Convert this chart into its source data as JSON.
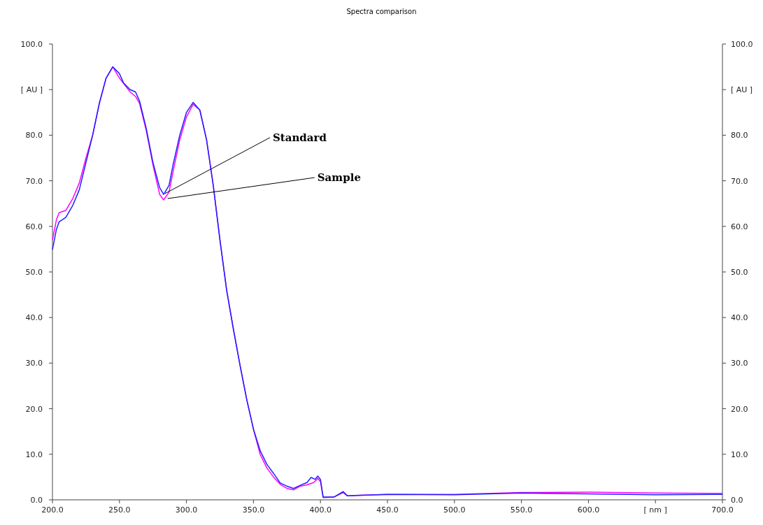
{
  "chart_data": {
    "type": "line",
    "title": "Spectra comparison",
    "xlim": [
      200,
      700
    ],
    "xticks": [
      {
        "value": 200,
        "label": "200.0"
      },
      {
        "value": 250,
        "label": "250.0"
      },
      {
        "value": 300,
        "label": "300.0"
      },
      {
        "value": 350,
        "label": "350.0"
      },
      {
        "value": 400,
        "label": "400.0"
      },
      {
        "value": 450,
        "label": "450.0"
      },
      {
        "value": 500,
        "label": "500.0"
      },
      {
        "value": 550,
        "label": "550.0"
      },
      {
        "value": 600,
        "label": "600.0"
      },
      {
        "value": 650,
        "label": "[ nm ]"
      },
      {
        "value": 700,
        "label": "700.0"
      }
    ],
    "ylim": [
      0,
      100
    ],
    "yticks": [
      {
        "value": 0,
        "label": "0.0"
      },
      {
        "value": 10,
        "label": "10.0"
      },
      {
        "value": 20,
        "label": "20.0"
      },
      {
        "value": 30,
        "label": "30.0"
      },
      {
        "value": 40,
        "label": "40.0"
      },
      {
        "value": 50,
        "label": "50.0"
      },
      {
        "value": 60,
        "label": "60.0"
      },
      {
        "value": 70,
        "label": "70.0"
      },
      {
        "value": 80,
        "label": "80.0"
      },
      {
        "value": 90,
        "label": "[ AU ]"
      },
      {
        "value": 100,
        "label": "100.0"
      }
    ],
    "y2lim": [
      0,
      100
    ],
    "y2ticks": [
      {
        "value": 0,
        "label": "0.0"
      },
      {
        "value": 10,
        "label": "10.0"
      },
      {
        "value": 20,
        "label": "20.0"
      },
      {
        "value": 30,
        "label": "30.0"
      },
      {
        "value": 40,
        "label": "40.0"
      },
      {
        "value": 50,
        "label": "50.0"
      },
      {
        "value": 60,
        "label": "60.0"
      },
      {
        "value": 70,
        "label": "70.0"
      },
      {
        "value": 80,
        "label": "80.0"
      },
      {
        "value": 90,
        "label": "[ AU ]"
      },
      {
        "value": 100,
        "label": "100.0"
      }
    ],
    "grid": false,
    "marker": "none",
    "line_style": "solid",
    "series": [
      {
        "color": "#ff00ff",
        "x": [
          200,
          203,
          205,
          210,
          215,
          220,
          225,
          230,
          235,
          240,
          245,
          250,
          258,
          262,
          265,
          270,
          275,
          280,
          283,
          287,
          290,
          295,
          300,
          305,
          310,
          315,
          320,
          325,
          330,
          335,
          340,
          345,
          350,
          355,
          360,
          365,
          370,
          375,
          380,
          385,
          390,
          395,
          398,
          400,
          402,
          410,
          417,
          420,
          450,
          500,
          550,
          600,
          650,
          700
        ],
        "values": [
          57,
          61.5,
          63,
          63.5,
          66,
          69.5,
          75,
          80,
          87,
          92.5,
          95,
          92.5,
          89.5,
          88.5,
          87,
          81,
          73.5,
          67,
          65.8,
          67.5,
          72,
          79,
          84,
          86.8,
          85.5,
          79,
          69,
          57,
          46,
          37.5,
          29.5,
          22,
          15.5,
          10,
          7,
          5,
          3.4,
          2.5,
          2.2,
          3,
          3.3,
          3.8,
          4.7,
          4,
          0.5,
          0.6,
          1.6,
          0.9,
          1.2,
          1.2,
          1.6,
          1.7,
          1.5,
          1.4
        ]
      },
      {
        "color": "#2020ff",
        "x": [
          200,
          203,
          205,
          210,
          215,
          220,
          225,
          230,
          235,
          240,
          245,
          250,
          253,
          258,
          262,
          265,
          270,
          275,
          280,
          283,
          287,
          290,
          295,
          300,
          305,
          310,
          315,
          320,
          325,
          330,
          335,
          340,
          345,
          350,
          355,
          360,
          365,
          370,
          375,
          380,
          385,
          390,
          393,
          396,
          398,
          400,
          402,
          410,
          417,
          420,
          450,
          500,
          550,
          600,
          650,
          700
        ],
        "values": [
          54.9,
          59.4,
          61,
          62,
          64.5,
          68,
          74,
          80,
          87,
          92.5,
          95,
          93.5,
          91.5,
          90,
          89.5,
          87.5,
          81.5,
          74,
          68.5,
          67,
          69,
          73.5,
          80,
          85,
          87.2,
          85.5,
          79,
          69,
          57,
          46,
          37.5,
          29.5,
          22,
          15.5,
          10.8,
          7.8,
          5.8,
          3.7,
          3,
          2.5,
          3.2,
          3.8,
          4.9,
          4.5,
          5.2,
          4.5,
          0.6,
          0.6,
          1.8,
          0.9,
          1.2,
          1.1,
          1.5,
          1.3,
          1.1,
          1.2
        ]
      }
    ],
    "annotations": [
      {
        "text": "Standard",
        "x": 284,
        "y": 67.2
      },
      {
        "text": "Sample",
        "x": 286,
        "y": 66.1
      }
    ]
  }
}
